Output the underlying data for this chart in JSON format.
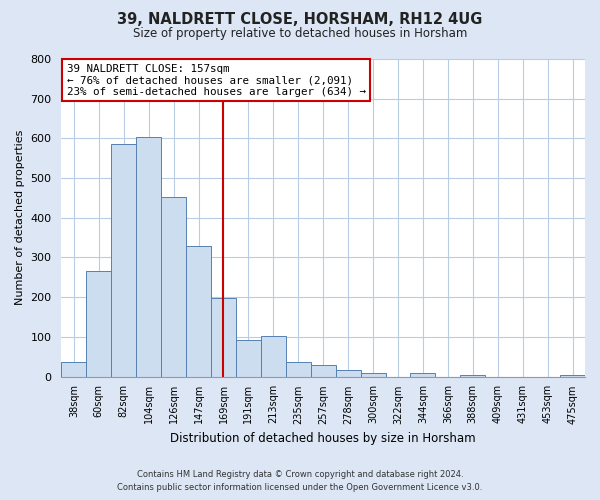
{
  "title": "39, NALDRETT CLOSE, HORSHAM, RH12 4UG",
  "subtitle": "Size of property relative to detached houses in Horsham",
  "xlabel": "Distribution of detached houses by size in Horsham",
  "ylabel": "Number of detached properties",
  "bar_labels": [
    "38sqm",
    "60sqm",
    "82sqm",
    "104sqm",
    "126sqm",
    "147sqm",
    "169sqm",
    "191sqm",
    "213sqm",
    "235sqm",
    "257sqm",
    "278sqm",
    "300sqm",
    "322sqm",
    "344sqm",
    "366sqm",
    "388sqm",
    "409sqm",
    "431sqm",
    "453sqm",
    "475sqm"
  ],
  "bar_values": [
    37,
    265,
    585,
    603,
    452,
    328,
    197,
    91,
    101,
    37,
    30,
    17,
    10,
    0,
    8,
    0,
    5,
    0,
    0,
    0,
    5
  ],
  "bar_color": "#ccddf0",
  "bar_edgecolor": "#5580b0",
  "ylim": [
    0,
    800
  ],
  "yticks": [
    0,
    100,
    200,
    300,
    400,
    500,
    600,
    700,
    800
  ],
  "vline_x": 5.98,
  "vline_color": "#cc0000",
  "annotation_title": "39 NALDRETT CLOSE: 157sqm",
  "annotation_line1": "← 76% of detached houses are smaller (2,091)",
  "annotation_line2": "23% of semi-detached houses are larger (634) →",
  "annotation_box_facecolor": "#ffffff",
  "annotation_box_edgecolor": "#cc0000",
  "footer_line1": "Contains HM Land Registry data © Crown copyright and database right 2024.",
  "footer_line2": "Contains public sector information licensed under the Open Government Licence v3.0.",
  "bg_color": "#dce6f5",
  "plot_bg_color": "#dce6f5",
  "axes_bg_color": "#ffffff"
}
